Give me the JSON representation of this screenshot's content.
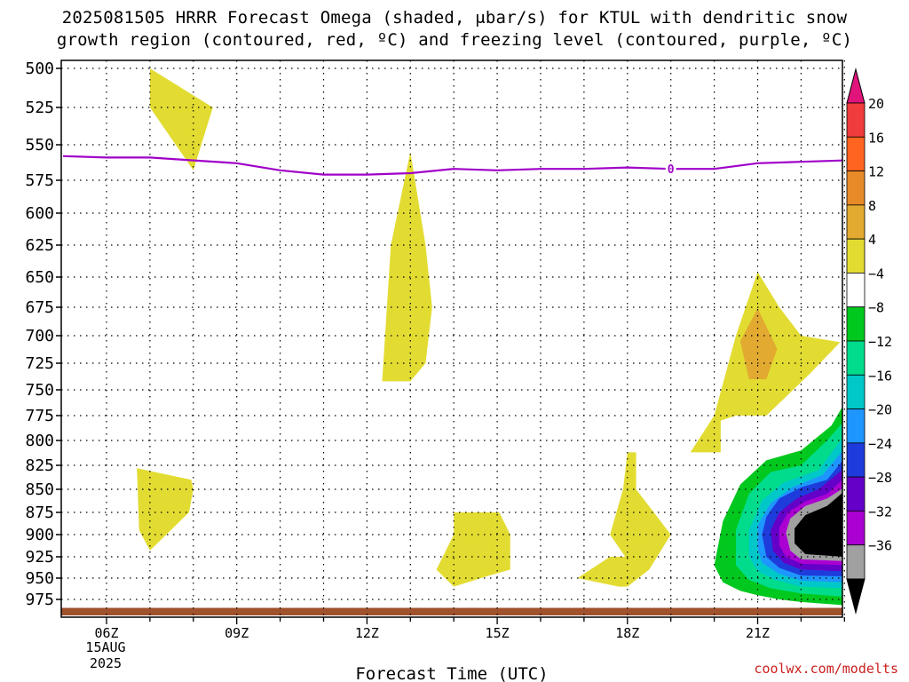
{
  "title": {
    "line1": "2025081505 HRRR Forecast Omega (shaded, μbar/s) for KTUL with dendritic snow",
    "line2": "growth region (contoured, red, ºC) and freezing level (contoured, purple, ºC)"
  },
  "credit": "coolwx.com/modelts",
  "chart_data": {
    "type": "contour",
    "xlabel": "Forecast Time (UTC)",
    "x_date_label": [
      "15AUG",
      "2025"
    ],
    "xlim": [
      5,
      23
    ],
    "ylim": [
      500,
      990
    ],
    "y_reversed": true,
    "x_ticks": [
      {
        "hour": 6,
        "label": "06Z"
      },
      {
        "hour": 9,
        "label": "09Z"
      },
      {
        "hour": 12,
        "label": "12Z"
      },
      {
        "hour": 15,
        "label": "15Z"
      },
      {
        "hour": 18,
        "label": "18Z"
      },
      {
        "hour": 21,
        "label": "21Z"
      }
    ],
    "y_ticks": [
      500,
      525,
      550,
      575,
      600,
      625,
      650,
      675,
      700,
      725,
      750,
      775,
      800,
      825,
      850,
      875,
      900,
      925,
      950,
      975
    ],
    "grid": true,
    "colorbar": {
      "levels": [
        20,
        16,
        12,
        8,
        4,
        -4,
        -8,
        -12,
        -16,
        -20,
        -24,
        -28,
        -32,
        -36
      ],
      "colors": [
        "#e0147a",
        "#f03c3c",
        "#ff6420",
        "#e88a28",
        "#e2aa30",
        "#e2dc32",
        "#ffffff",
        "#00c81e",
        "#00dc8c",
        "#00c8c8",
        "#1e96ff",
        "#1e3cdc",
        "#6400c8",
        "#aa00d2",
        "#a0a0a0",
        "#000000"
      ]
    },
    "freezing_level": {
      "label": "0",
      "color": "#a000c8",
      "x": [
        5.0,
        6.0,
        7.0,
        8.0,
        9.0,
        10.0,
        11.0,
        12.0,
        13.0,
        14.0,
        15.0,
        16.0,
        17.0,
        18.0,
        19.0,
        20.0,
        21.0,
        22.0,
        23.0
      ],
      "y": [
        558,
        559,
        559,
        561,
        563,
        568,
        571,
        571,
        570,
        567,
        568,
        567,
        567,
        566,
        567,
        567,
        563,
        562,
        561
      ]
    },
    "terrain": {
      "color": "#a0522d",
      "top": 985
    },
    "omega_regions": [
      {
        "value": "4 to 8",
        "color": "#e2dc32",
        "x": [
          7.0,
          8.45,
          8.0,
          7.0
        ],
        "y": [
          500,
          525,
          568,
          525
        ]
      },
      {
        "value": "4 to 8",
        "color": "#e2dc32",
        "x": [
          13.0,
          13.35,
          13.5,
          13.35,
          13.0,
          12.35,
          12.55,
          13.0
        ],
        "y": [
          555,
          625,
          675,
          725,
          742,
          742,
          625,
          555
        ]
      },
      {
        "value": "4 to 8",
        "color": "#e2dc32",
        "x": [
          6.7,
          7.95,
          8.0,
          7.9,
          7.0,
          6.75
        ],
        "y": [
          828,
          840,
          850,
          875,
          918,
          895
        ]
      },
      {
        "value": "4 to 8",
        "color": "#e2dc32",
        "x": [
          14.0,
          15.05,
          15.3,
          15.3,
          14.75,
          14.0,
          13.6,
          14.0
        ],
        "y": [
          875,
          875,
          900,
          940,
          948,
          960,
          940,
          900
        ]
      },
      {
        "value": "4 to 8",
        "color": "#e2dc32",
        "x": [
          21.0,
          21.5,
          22.0,
          22.9,
          22.2,
          21.2,
          20.5,
          20.15,
          20.15,
          19.95,
          19.95,
          18.7,
          18.0,
          17.9,
          17.6,
          17.95,
          17.6,
          17.15,
          16.85,
          17.8,
          18.0,
          18.5,
          19.0,
          18.2,
          18.2,
          19.0,
          19.45,
          20.0,
          20.5,
          21.0
        ],
        "y": [
          646,
          675,
          700,
          706,
          735,
          775,
          775,
          780,
          812,
          812,
          812,
          812,
          812,
          850,
          900,
          925,
          925,
          940,
          950,
          960,
          960,
          940,
          900,
          850,
          812,
          812,
          812,
          775,
          700,
          646
        ]
      },
      {
        "value": "8 to 12",
        "color": "#e2aa30",
        "x": [
          21.0,
          21.45,
          21.2,
          20.8,
          20.6,
          21.0
        ],
        "y": [
          676,
          712,
          740,
          740,
          705,
          676
        ]
      },
      {
        "value": "-4 to -8",
        "color": "#00c81e",
        "x": [
          23.0,
          23.0,
          22.5,
          22.0,
          21.5,
          21.0,
          20.6,
          20.2,
          20.0,
          20.2,
          20.6,
          21.2,
          22.0,
          22.7,
          23.0
        ],
        "y": [
          763,
          982,
          980,
          978,
          975,
          970,
          965,
          955,
          935,
          885,
          845,
          820,
          810,
          785,
          763
        ]
      },
      {
        "value": "-8 to -12",
        "color": "#00dc8c",
        "x": [
          23.0,
          23.0,
          22.0,
          21.3,
          20.8,
          20.5,
          20.5,
          20.8,
          21.3,
          22.0,
          22.6,
          23.0
        ],
        "y": [
          780,
          972,
          968,
          962,
          952,
          935,
          895,
          855,
          832,
          825,
          800,
          780
        ]
      },
      {
        "value": "-12 to -16",
        "color": "#00c8c8",
        "x": [
          23.0,
          23.0,
          22.0,
          21.4,
          21.0,
          20.8,
          20.8,
          21.1,
          21.6,
          22.4,
          23.0
        ],
        "y": [
          795,
          962,
          960,
          952,
          942,
          925,
          895,
          862,
          843,
          830,
          795
        ]
      },
      {
        "value": "-16 to -20",
        "color": "#1e96ff",
        "x": [
          23.0,
          23.0,
          22.0,
          21.5,
          21.1,
          21.0,
          21.0,
          21.3,
          21.8,
          22.5,
          23.0
        ],
        "y": [
          808,
          955,
          953,
          945,
          932,
          915,
          890,
          865,
          848,
          835,
          808
        ]
      },
      {
        "value": "-20 to -24",
        "color": "#1e3cdc",
        "x": [
          23.0,
          23.0,
          22.0,
          21.5,
          21.2,
          21.1,
          21.2,
          21.5,
          22.0,
          22.6,
          23.0
        ],
        "y": [
          818,
          948,
          947,
          938,
          925,
          900,
          880,
          860,
          848,
          840,
          818
        ]
      },
      {
        "value": "-24 to -28",
        "color": "#6400c8",
        "x": [
          23.0,
          23.0,
          22.0,
          21.6,
          21.35,
          21.3,
          21.5,
          21.9,
          22.4,
          23.0
        ],
        "y": [
          828,
          942,
          940,
          932,
          918,
          895,
          875,
          860,
          850,
          828
        ]
      },
      {
        "value": "-28 to -32",
        "color": "#aa00d2",
        "x": [
          23.0,
          23.0,
          22.0,
          21.65,
          21.5,
          21.5,
          21.7,
          22.1,
          22.6,
          23.0
        ],
        "y": [
          838,
          935,
          933,
          925,
          912,
          892,
          875,
          863,
          855,
          838
        ]
      },
      {
        "value": "-32 to -36",
        "color": "#a0a0a0",
        "x": [
          23.0,
          23.0,
          22.0,
          21.75,
          21.65,
          21.75,
          22.1,
          22.6,
          23.0
        ],
        "y": [
          848,
          930,
          928,
          918,
          898,
          882,
          868,
          860,
          848
        ]
      },
      {
        "value": "< -36",
        "color": "#000000",
        "x": [
          23.0,
          23.0,
          22.1,
          21.85,
          21.85,
          22.1,
          22.6,
          23.0
        ],
        "y": [
          852,
          925,
          922,
          910,
          893,
          878,
          868,
          852
        ]
      }
    ]
  }
}
